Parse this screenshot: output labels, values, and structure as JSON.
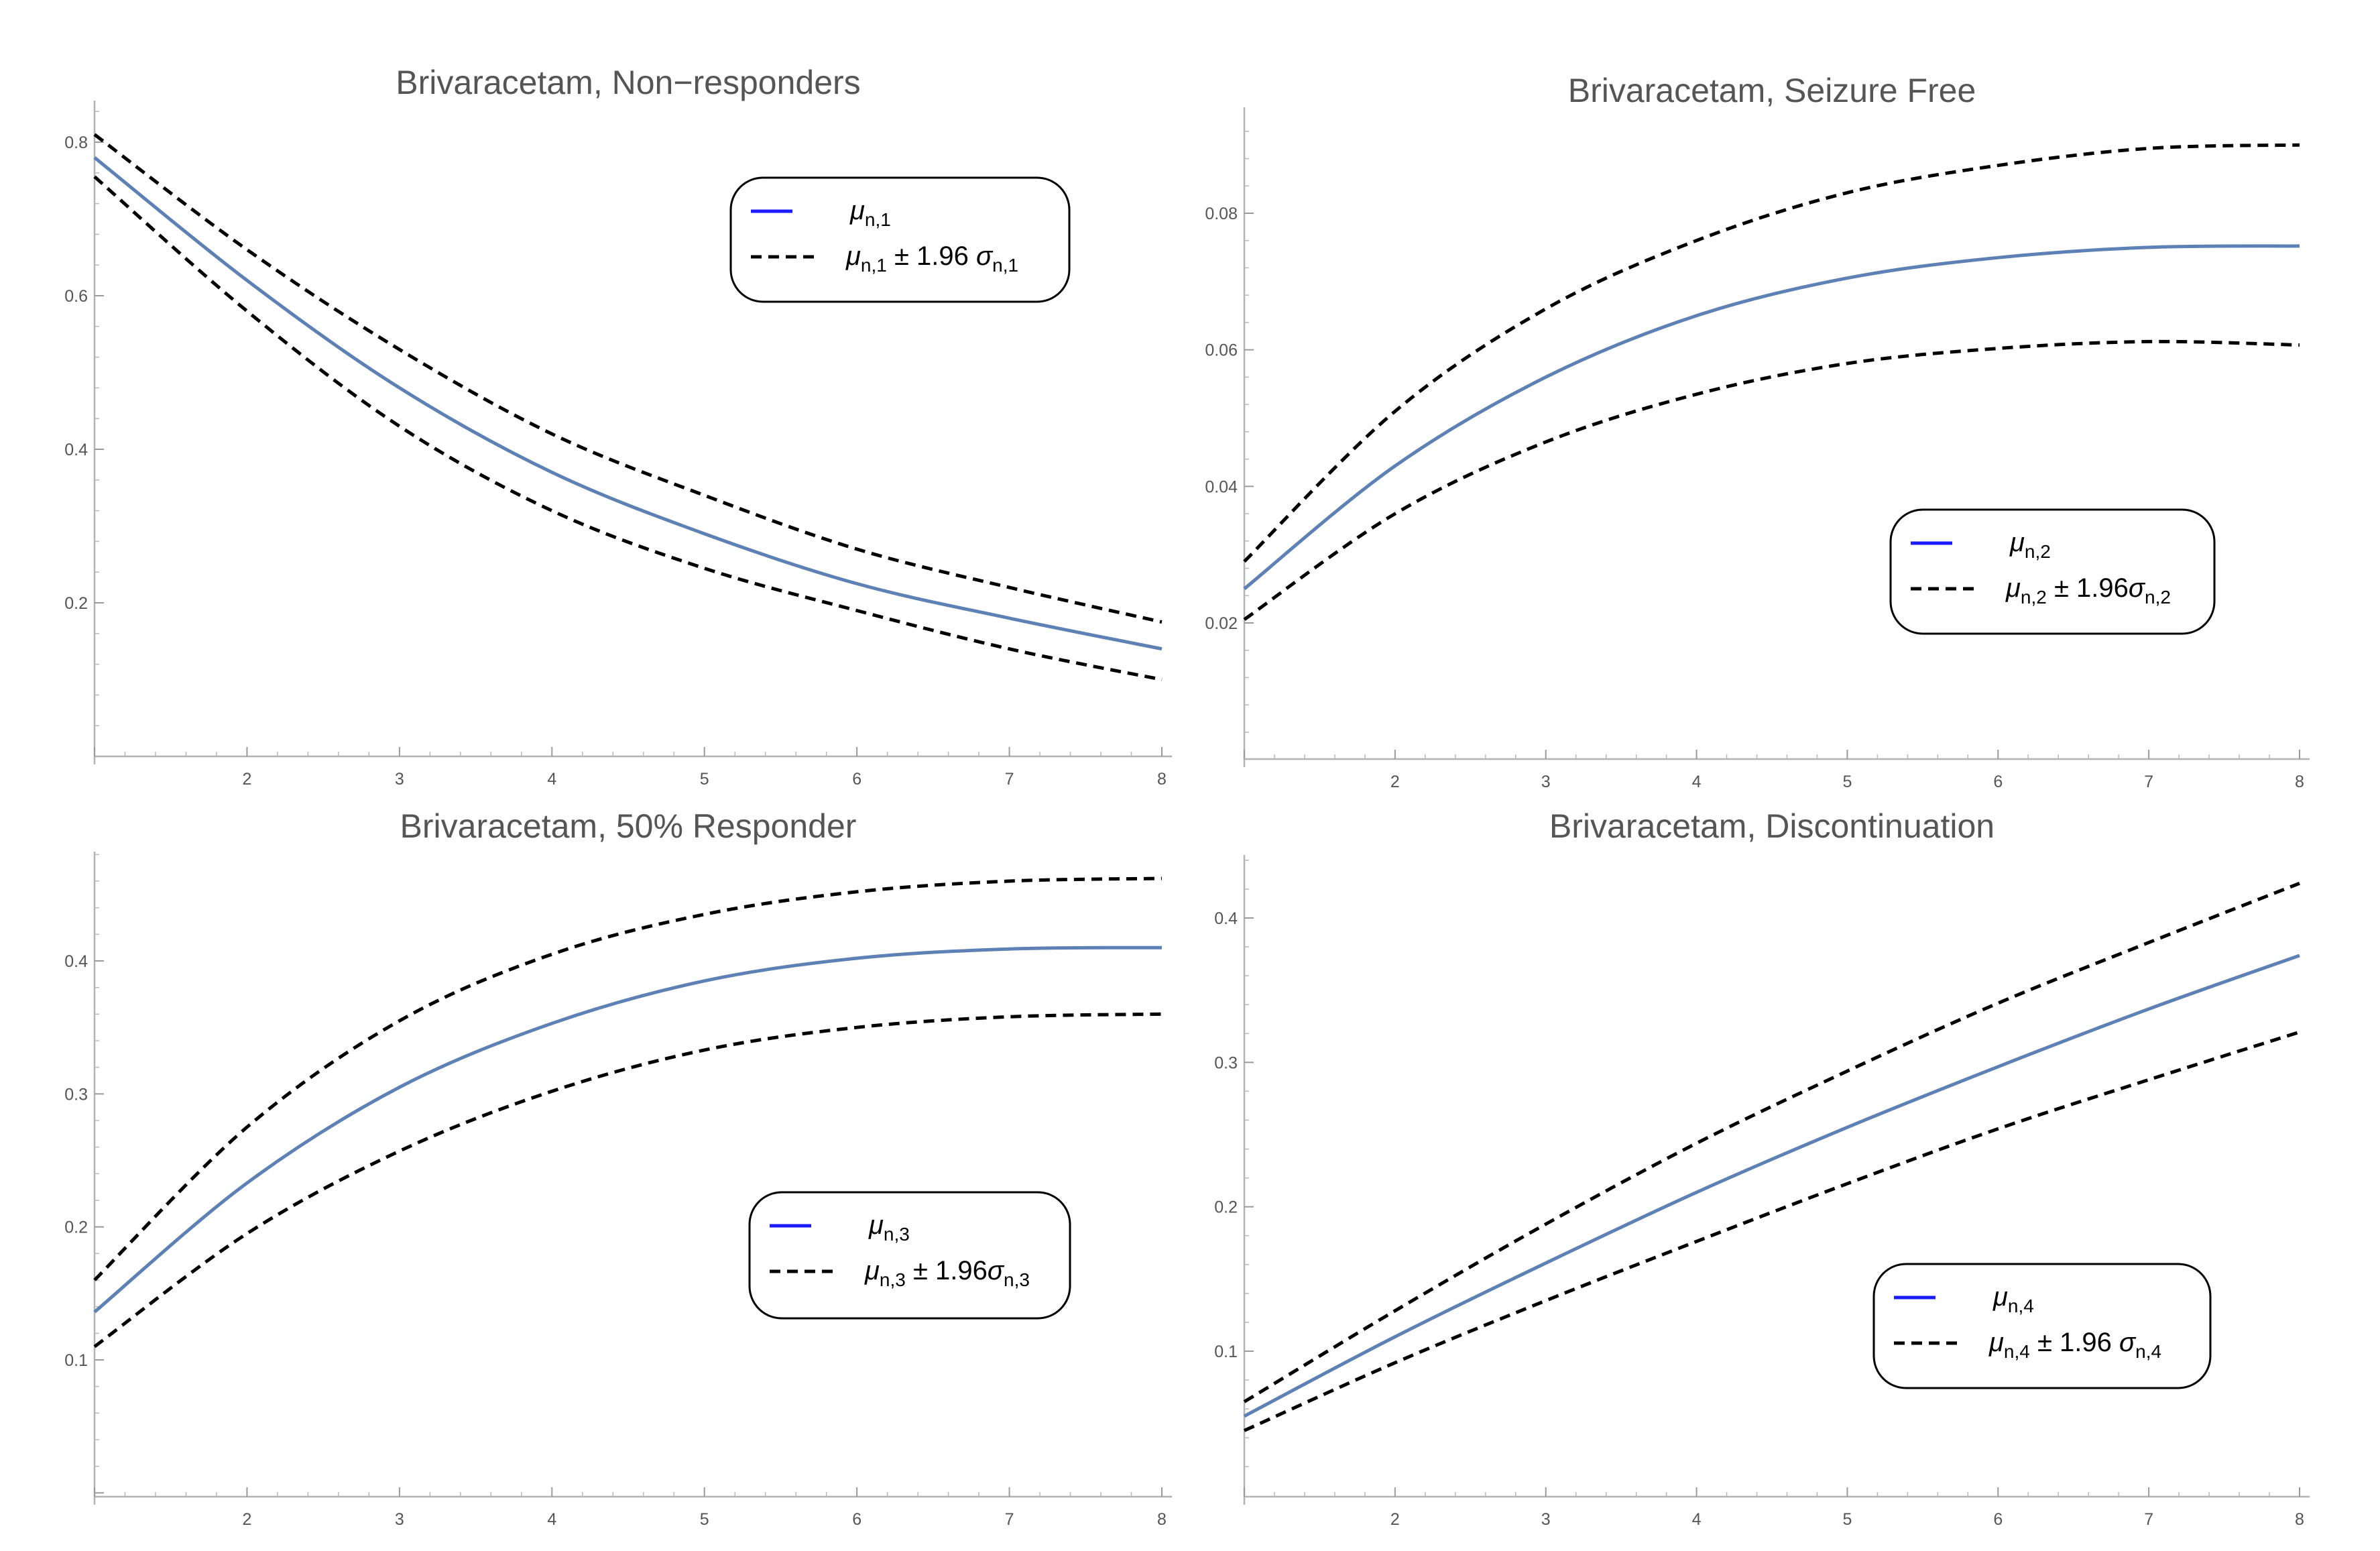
{
  "chart_data": [
    {
      "type": "line",
      "title": "Brivaracetam, Non−responders",
      "xlabel": "",
      "ylabel": "",
      "xlim": [
        1,
        8
      ],
      "ylim": [
        0,
        0.82
      ],
      "xticks": [
        "2",
        "3",
        "4",
        "5",
        "6",
        "7",
        "8"
      ],
      "yticks": [
        "0.2",
        "0.4",
        "0.6",
        "0.8"
      ],
      "x": [
        1,
        2,
        3,
        4,
        5,
        6,
        7,
        8
      ],
      "series": [
        {
          "name": "upper",
          "values": [
            0.81,
            0.66,
            0.53,
            0.42,
            0.34,
            0.27,
            0.22,
            0.175
          ]
        },
        {
          "name": "mean",
          "values": [
            0.78,
            0.62,
            0.48,
            0.37,
            0.29,
            0.225,
            0.18,
            0.14
          ]
        },
        {
          "name": "lower",
          "values": [
            0.755,
            0.58,
            0.43,
            0.32,
            0.245,
            0.19,
            0.14,
            0.1
          ]
        }
      ],
      "legend": {
        "mean": "μ",
        "mean_sub": "n,1",
        "band": "μ",
        "band_sub": "n,1",
        "band_mid": "± 1.96 ",
        "band_sigma": "σ",
        "band_sigma_sub": "n,1"
      },
      "legend_position": "top-right"
    },
    {
      "type": "line",
      "title": "Brivaracetam, Seizure Free",
      "xlabel": "",
      "ylabel": "",
      "xlim": [
        1,
        8
      ],
      "ylim": [
        0,
        0.095
      ],
      "xticks": [
        "2",
        "3",
        "4",
        "5",
        "6",
        "7",
        "8"
      ],
      "yticks": [
        "0.02",
        "0.04",
        "0.06",
        "0.08"
      ],
      "x": [
        1,
        2,
        3,
        4,
        5,
        6,
        7,
        8
      ],
      "series": [
        {
          "name": "upper",
          "values": [
            0.029,
            0.051,
            0.066,
            0.076,
            0.083,
            0.087,
            0.0895,
            0.09
          ]
        },
        {
          "name": "mean",
          "values": [
            0.025,
            0.043,
            0.056,
            0.065,
            0.0705,
            0.0735,
            0.075,
            0.0752
          ]
        },
        {
          "name": "lower",
          "values": [
            0.0205,
            0.036,
            0.0465,
            0.0535,
            0.058,
            0.0602,
            0.0612,
            0.0607
          ]
        }
      ],
      "legend": {
        "mean": "μ",
        "mean_sub": "n,2",
        "band": "μ",
        "band_sub": "n,2",
        "band_mid": "± 1.96",
        "band_sigma": "σ",
        "band_sigma_sub": "n,2"
      },
      "legend_position": "center-right"
    },
    {
      "type": "line",
      "title": "Brivaracetam, 50% Responder",
      "xlabel": "",
      "ylabel": "",
      "xlim": [
        1,
        8
      ],
      "ylim": [
        0,
        0.48
      ],
      "xticks": [
        "2",
        "3",
        "4",
        "5",
        "6",
        "7",
        "8"
      ],
      "yticks": [
        "0.1",
        "0.2",
        "0.3",
        "0.4"
      ],
      "x": [
        1,
        2,
        3,
        4,
        5,
        6,
        7,
        8
      ],
      "series": [
        {
          "name": "upper",
          "values": [
            0.16,
            0.275,
            0.355,
            0.405,
            0.435,
            0.452,
            0.46,
            0.462
          ]
        },
        {
          "name": "mean",
          "values": [
            0.136,
            0.233,
            0.305,
            0.353,
            0.385,
            0.402,
            0.409,
            0.41
          ]
        },
        {
          "name": "lower",
          "values": [
            0.11,
            0.195,
            0.257,
            0.302,
            0.333,
            0.35,
            0.358,
            0.36
          ]
        }
      ],
      "legend": {
        "mean": "μ",
        "mean_sub": "n,3",
        "band": "μ",
        "band_sub": "n,3",
        "band_mid": "± 1.96",
        "band_sigma": "σ",
        "band_sigma_sub": "n,3"
      },
      "legend_position": "center-right"
    },
    {
      "type": "line",
      "title": "Brivaracetam, Discontinuation",
      "xlabel": "",
      "ylabel": "",
      "xlim": [
        1,
        8
      ],
      "ylim": [
        0,
        0.44
      ],
      "xticks": [
        "2",
        "3",
        "4",
        "5",
        "6",
        "7",
        "8"
      ],
      "yticks": [
        "0.1",
        "0.2",
        "0.3",
        "0.4"
      ],
      "x": [
        1,
        2,
        3,
        4,
        5,
        6,
        7,
        8
      ],
      "series": [
        {
          "name": "upper",
          "values": [
            0.065,
            0.128,
            0.188,
            0.244,
            0.294,
            0.341,
            0.383,
            0.424
          ]
        },
        {
          "name": "mean",
          "values": [
            0.055,
            0.11,
            0.161,
            0.21,
            0.255,
            0.297,
            0.337,
            0.374
          ]
        },
        {
          "name": "lower",
          "values": [
            0.045,
            0.092,
            0.135,
            0.176,
            0.216,
            0.254,
            0.288,
            0.321
          ]
        }
      ],
      "legend": {
        "mean": "μ",
        "mean_sub": "n,4",
        "band": "μ",
        "band_sub": "n,4",
        "band_mid": "± 1.96 ",
        "band_sigma": "σ",
        "band_sigma_sub": "n,4"
      },
      "legend_position": "bottom-right"
    }
  ]
}
